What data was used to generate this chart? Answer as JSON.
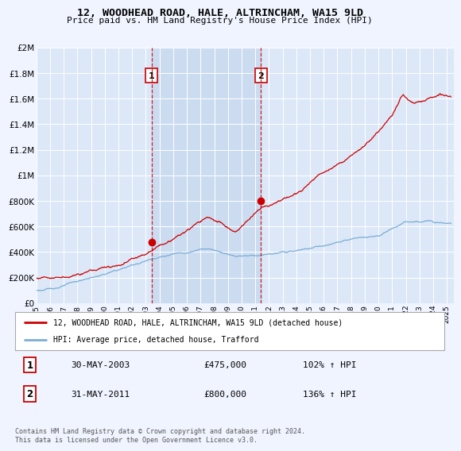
{
  "title1": "12, WOODHEAD ROAD, HALE, ALTRINCHAM, WA15 9LD",
  "title2": "Price paid vs. HM Land Registry's House Price Index (HPI)",
  "background_color": "#f0f4ff",
  "plot_bg": "#dce8f8",
  "shade_color": "#c8daf0",
  "red_color": "#cc0000",
  "blue_color": "#7aadd4",
  "marker1_x": 2003.42,
  "marker1_y": 475000,
  "marker2_x": 2011.42,
  "marker2_y": 800000,
  "marker1_date": "30-MAY-2003",
  "marker1_price": "£475,000",
  "marker1_hpi": "102% ↑ HPI",
  "marker2_date": "31-MAY-2011",
  "marker2_price": "£800,000",
  "marker2_hpi": "136% ↑ HPI",
  "legend_line1": "12, WOODHEAD ROAD, HALE, ALTRINCHAM, WA15 9LD (detached house)",
  "legend_line2": "HPI: Average price, detached house, Trafford",
  "footer": "Contains HM Land Registry data © Crown copyright and database right 2024.\nThis data is licensed under the Open Government Licence v3.0.",
  "xmin": 1995,
  "xmax": 2025.5,
  "ylim": [
    0,
    2000000
  ],
  "yticks": [
    0,
    200000,
    400000,
    600000,
    800000,
    1000000,
    1200000,
    1400000,
    1600000,
    1800000,
    2000000
  ]
}
